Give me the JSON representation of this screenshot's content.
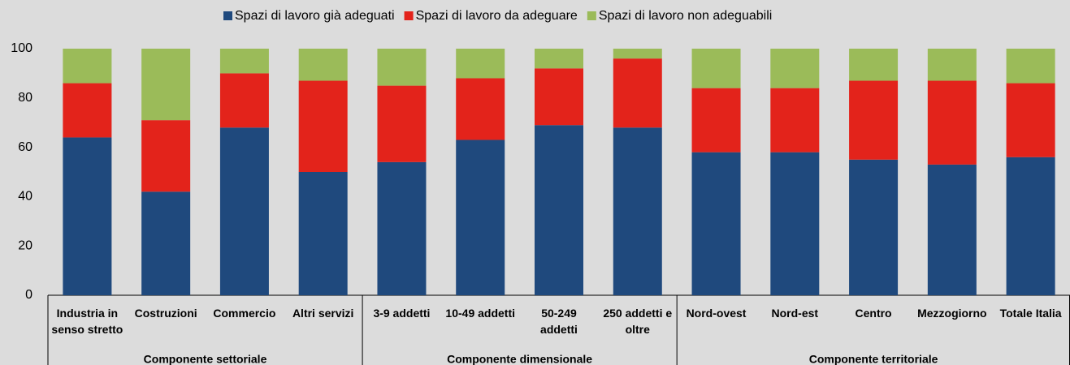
{
  "chart_data": {
    "type": "stacked_bar",
    "groups": [
      {
        "label": "Componente settoriale",
        "categories": [
          "Industria in senso stretto",
          "Costruzioni",
          "Commercio",
          "Altri servizi"
        ]
      },
      {
        "label": "Componente dimensionale",
        "categories": [
          "3-9 addetti",
          "10-49 addetti",
          "50-249 addetti",
          "250 addetti e oltre"
        ]
      },
      {
        "label": "Componente territoriale",
        "categories": [
          "Nord-ovest",
          "Nord-est",
          "Centro",
          "Mezzogiorno",
          "Totale Italia"
        ]
      }
    ],
    "series": [
      {
        "name": "Spazi di lavoro già adeguati",
        "color": "#1f497d",
        "values": [
          64,
          42,
          68,
          50,
          54,
          63,
          69,
          68,
          58,
          58,
          55,
          53,
          56
        ]
      },
      {
        "name": "Spazi di lavoro da adeguare",
        "color": "#e3231b",
        "values": [
          22,
          29,
          22,
          37,
          31,
          25,
          23,
          28,
          26,
          26,
          32,
          34,
          30
        ]
      },
      {
        "name": "Spazi di lavoro non adeguabili",
        "color": "#9bbb59",
        "values": [
          14,
          29,
          10,
          13,
          15,
          12,
          8,
          4,
          16,
          16,
          13,
          13,
          14
        ]
      }
    ],
    "ylim": [
      0,
      100
    ],
    "yticks": [
      0,
      20,
      40,
      60,
      80,
      100
    ],
    "grid": false,
    "legend": "top"
  }
}
